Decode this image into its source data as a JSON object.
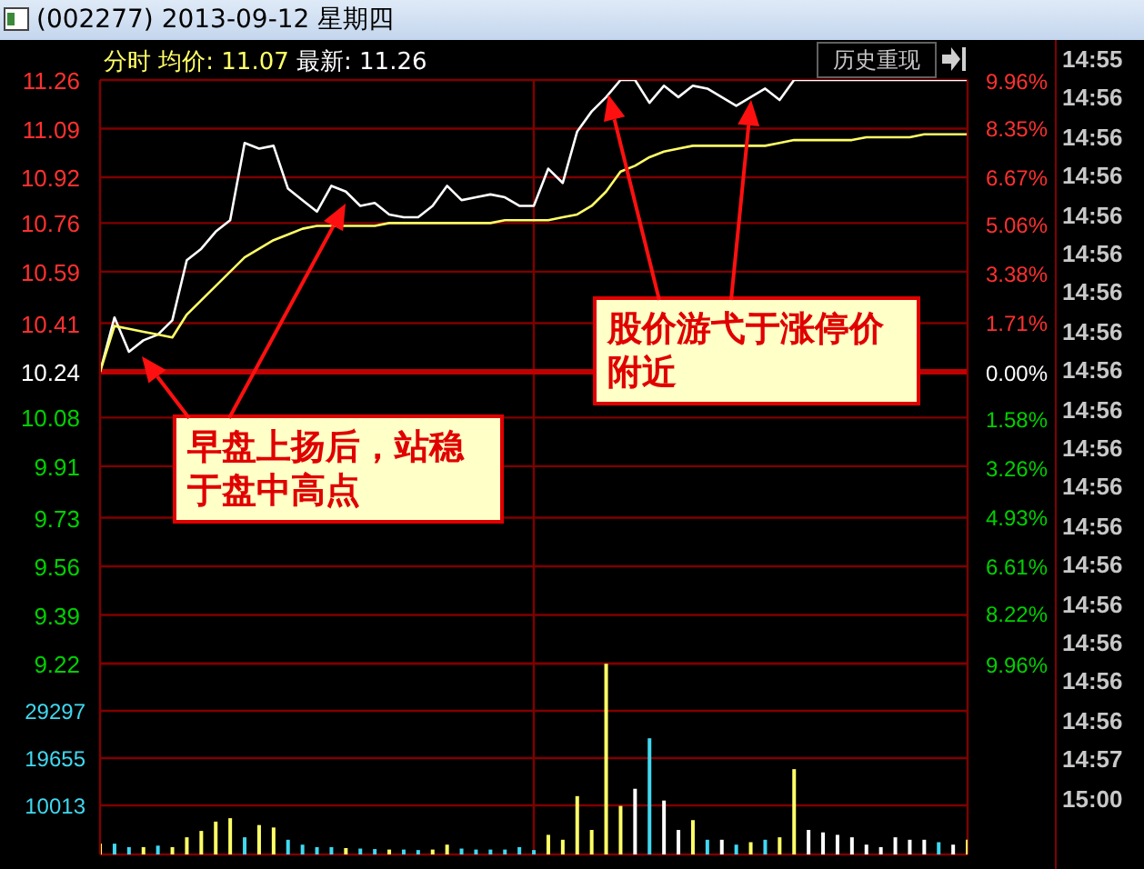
{
  "chart_data": [
    {
      "type": "line",
      "title": "(002277) 2013-09-12 星期四",
      "categories": [
        null,
        null,
        null,
        null,
        null,
        null,
        null,
        null,
        null,
        null,
        null,
        null,
        null,
        null,
        null,
        null,
        null,
        null,
        null,
        null,
        null,
        null,
        null,
        null,
        null,
        null,
        null,
        null,
        null,
        null,
        null,
        null,
        null,
        null,
        null,
        null,
        null,
        null,
        null,
        null,
        null,
        null,
        null,
        null,
        null,
        null,
        null,
        null,
        null,
        null,
        null,
        null,
        null,
        null,
        null,
        null,
        null,
        null,
        null,
        null,
        null
      ],
      "series": [
        {
          "color": "#ffffff",
          "values": [
            10.24,
            10.43,
            10.31,
            10.35,
            10.37,
            10.42,
            10.63,
            10.67,
            10.73,
            10.77,
            11.04,
            11.02,
            11.03,
            10.88,
            10.84,
            10.8,
            10.89,
            10.87,
            10.82,
            10.83,
            10.79,
            10.78,
            10.78,
            10.82,
            10.89,
            10.84,
            10.85,
            10.86,
            10.85,
            10.82,
            10.82,
            10.95,
            10.9,
            11.08,
            11.15,
            11.2,
            11.26,
            11.26,
            11.18,
            11.24,
            11.2,
            11.24,
            11.23,
            11.2,
            11.17,
            11.2,
            11.23,
            11.19,
            11.26,
            11.26,
            11.26,
            11.26,
            11.26,
            11.26,
            11.26,
            11.26,
            11.26,
            11.26,
            11.26,
            11.26,
            11.26
          ]
        },
        {
          "color": "#ffff66",
          "values": [
            10.24,
            10.4,
            10.39,
            10.38,
            10.37,
            10.36,
            10.44,
            10.49,
            10.54,
            10.59,
            10.64,
            10.67,
            10.7,
            10.72,
            10.74,
            10.75,
            10.75,
            10.75,
            10.75,
            10.75,
            10.76,
            10.76,
            10.76,
            10.76,
            10.76,
            10.76,
            10.76,
            10.76,
            10.77,
            10.77,
            10.77,
            10.77,
            10.78,
            10.79,
            10.82,
            10.87,
            10.94,
            10.96,
            10.99,
            11.01,
            11.02,
            11.03,
            11.03,
            11.03,
            11.03,
            11.03,
            11.03,
            11.04,
            11.05,
            11.05,
            11.05,
            11.05,
            11.05,
            11.06,
            11.06,
            11.06,
            11.06,
            11.07,
            11.07,
            11.07,
            11.07
          ]
        }
      ],
      "ylim": [
        9.22,
        11.26
      ],
      "yticks": [
        9.22,
        9.39,
        9.56,
        9.73,
        9.91,
        10.08,
        10.24,
        10.41,
        10.59,
        10.76,
        10.92,
        11.09,
        11.26
      ],
      "y2lim": [
        -9.96,
        9.96
      ],
      "y2ticks": [
        {
          "value": -9.96,
          "label": "9.96%"
        },
        {
          "value": -8.22,
          "label": "8.22%"
        },
        {
          "value": -6.61,
          "label": "6.61%"
        },
        {
          "value": -4.93,
          "label": "4.93%"
        },
        {
          "value": -3.26,
          "label": "3.26%"
        },
        {
          "value": -1.58,
          "label": "1.58%"
        },
        {
          "value": 0,
          "label": "0.00%"
        },
        {
          "value": 1.71,
          "label": "1.71%"
        },
        {
          "value": 3.38,
          "label": "3.38%"
        },
        {
          "value": 5.06,
          "label": "5.06%"
        },
        {
          "value": 6.67,
          "label": "6.67%"
        },
        {
          "value": 8.35,
          "label": "8.35%"
        },
        {
          "value": 9.96,
          "label": "9.96%"
        }
      ],
      "ref_lines": [
        {
          "axis": "y",
          "value": 10.24,
          "color": "#c00000"
        }
      ],
      "grid": true,
      "legend": false,
      "marker": "none",
      "line_style": "solid",
      "tick_labels": "y",
      "annotations": [
        "分时",
        "均价: 11.07",
        "最新: 11.26",
        "历史重现",
        "早盘上扬后，站稳于盘中高点",
        "股价游弋于涨停价附近",
        "14:55",
        "14:56",
        "14:56",
        "14:56",
        "14:56",
        "14:56",
        "14:56",
        "14:56",
        "14:56",
        "14:56",
        "14:56",
        "14:56",
        "14:56",
        "14:56",
        "14:56",
        "14:56",
        "14:56",
        "14:56",
        "14:57",
        "15:00"
      ]
    },
    {
      "type": "bar",
      "categories": [
        null,
        null,
        null,
        null,
        null,
        null,
        null,
        null,
        null,
        null,
        null,
        null,
        null,
        null,
        null,
        null,
        null,
        null,
        null,
        null,
        null,
        null,
        null,
        null,
        null,
        null,
        null,
        null,
        null,
        null,
        null,
        null,
        null,
        null,
        null,
        null,
        null,
        null,
        null,
        null,
        null,
        null,
        null,
        null,
        null,
        null,
        null,
        null,
        null,
        null,
        null,
        null,
        null,
        null,
        null,
        null,
        null,
        null,
        null,
        null,
        null
      ],
      "values": [
        2200,
        2200,
        1500,
        1500,
        1800,
        1500,
        3500,
        4800,
        6700,
        7400,
        3500,
        6000,
        5500,
        3000,
        2000,
        1500,
        1500,
        1300,
        1200,
        1100,
        1000,
        1000,
        900,
        1000,
        2000,
        1200,
        1000,
        1000,
        1000,
        1500,
        900,
        4000,
        3000,
        11900,
        5000,
        38900,
        9900,
        13400,
        23700,
        11000,
        5000,
        7000,
        3000,
        3000,
        2000,
        2500,
        3000,
        3500,
        17400,
        5000,
        4500,
        4000,
        3500,
        2000,
        1500,
        3500,
        3000,
        3000,
        2500,
        2000,
        3000
      ],
      "colors": [
        "#ffff66",
        "#40d8f0",
        "#40d8f0",
        "#ffff66",
        "#40d8f0",
        "#ffff66",
        "#ffff66",
        "#ffff66",
        "#ffff66",
        "#ffff66",
        "#40d8f0",
        "#ffff66",
        "#ffff66",
        "#40d8f0",
        "#40d8f0",
        "#40d8f0",
        "#40d8f0",
        "#ffff66",
        "#40d8f0",
        "#40d8f0",
        "#ffff66",
        "#40d8f0",
        "#40d8f0",
        "#ffff66",
        "#ffff66",
        "#40d8f0",
        "#40d8f0",
        "#40d8f0",
        "#40d8f0",
        "#40d8f0",
        "#40d8f0",
        "#ffff66",
        "#ffff66",
        "#ffff66",
        "#ffff66",
        "#ffff66",
        "#ffff66",
        "#ffffff",
        "#40d8f0",
        "#ffffff",
        "#ffffff",
        "#ffff66",
        "#40d8f0",
        "#ffffff",
        "#40d8f0",
        "#ffff66",
        "#40d8f0",
        "#ffff66",
        "#ffff66",
        "#ffffff",
        "#ffffff",
        "#ffffff",
        "#ffffff",
        "#ffffff",
        "#ffffff",
        "#ffffff",
        "#ffffff",
        "#ffffff",
        "#40d8f0",
        "#ffffff",
        "#ffff66"
      ],
      "ylim": [
        0,
        38939
      ],
      "yticks": [
        10013,
        19655,
        29297,
        {
          "value": 38939,
          "label": null
        }
      ],
      "grid": true,
      "legend": false,
      "tick_labels": "y"
    }
  ]
}
